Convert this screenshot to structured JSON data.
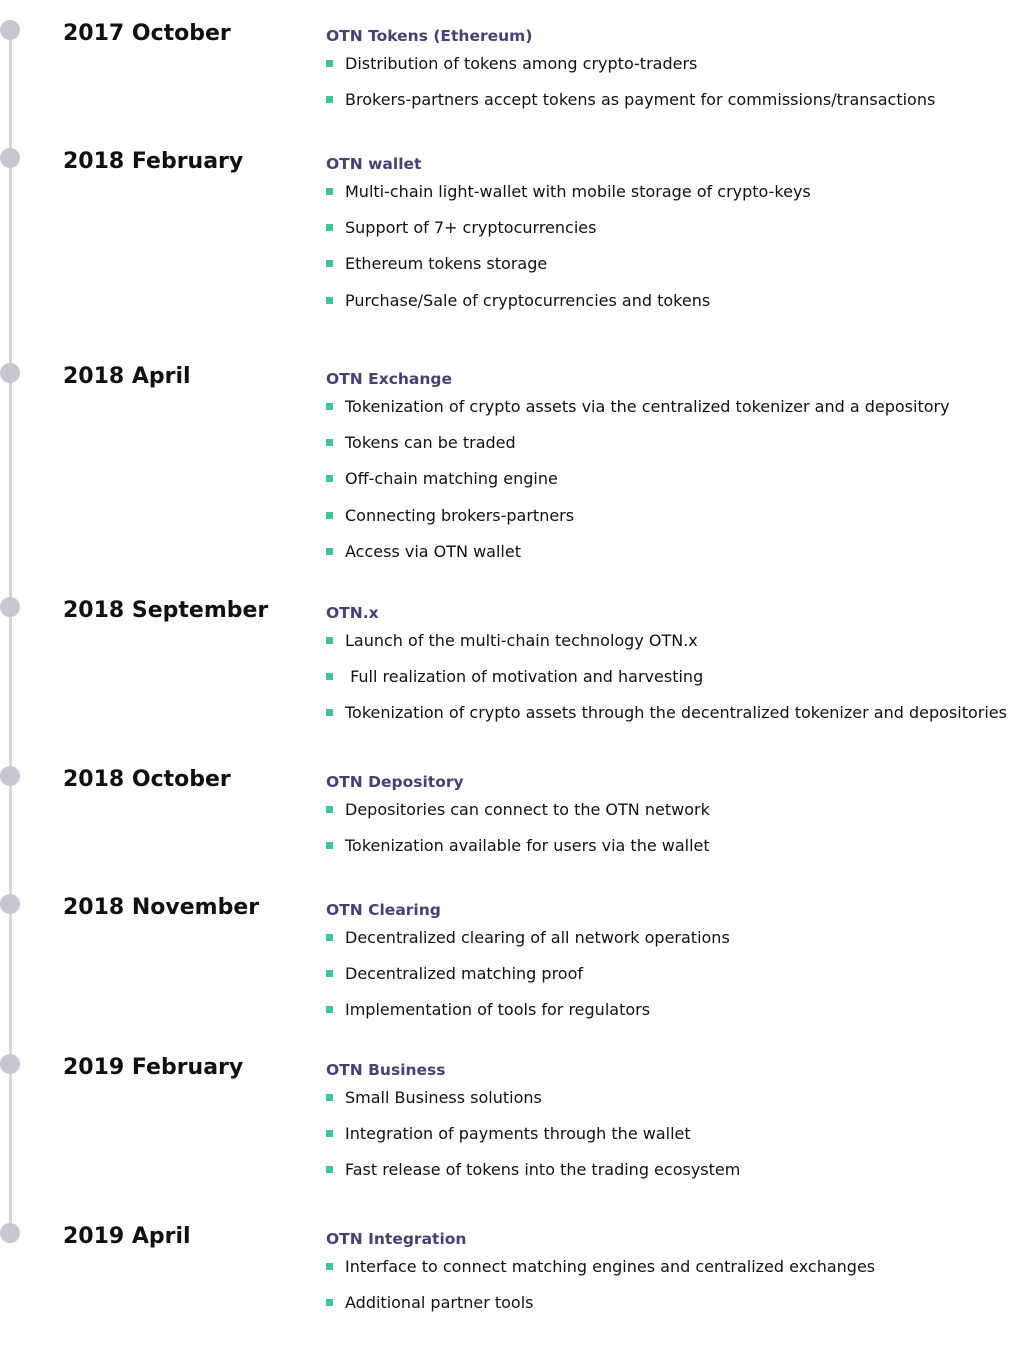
{
  "milestones": [
    {
      "date": "2017 October",
      "title": "OTN Tokens (Ethereum)",
      "items": [
        "Distribution of tokens among crypto-traders",
        "Brokers-partners accept tokens as payment for commissions/transactions"
      ]
    },
    {
      "date": "2018 February",
      "title": "OTN wallet",
      "items": [
        "Multi-chain light-wallet with mobile storage of crypto-keys",
        "Support of 7+ cryptocurrencies",
        "Ethereum tokens storage",
        "Purchase/Sale of cryptocurrencies and tokens"
      ]
    },
    {
      "date": "2018 April",
      "title": "OTN Exchange",
      "items": [
        "Tokenization of crypto assets via the centralized tokenizer and a depository",
        "Tokens can be traded",
        "Off-chain matching engine",
        "Connecting brokers-partners",
        "Access via OTN wallet"
      ]
    },
    {
      "date": "2018 September",
      "title": "OTN.x",
      "items": [
        "Launch of the multi-chain technology OTN.x",
        " Full realization of motivation and harvesting",
        "Tokenization of crypto assets through the decentralized tokenizer and depositories"
      ]
    },
    {
      "date": "2018 October",
      "title": "OTN Depository",
      "items": [
        "Depositories can connect to the OTN network",
        "Tokenization available for users via the wallet"
      ]
    },
    {
      "date": "2018 November",
      "title": "OTN Clearing",
      "items": [
        "Decentralized clearing of all network operations",
        "Decentralized matching proof",
        "Implementation of tools for regulators"
      ]
    },
    {
      "date": "2019 February",
      "title": "OTN Business",
      "items": [
        "Small Business solutions",
        "Integration of payments through the wallet",
        "Fast release of tokens into the trading ecosystem"
      ]
    },
    {
      "date": "2019 April",
      "title": "OTN Integration",
      "items": [
        "Interface to connect matching engines and centralized exchanges",
        "Additional partner tools"
      ]
    }
  ],
  "colors": {
    "title": "#4a3f75",
    "bullet": "#3fc4a0",
    "timeline": "#d6d3df",
    "dot": "#c9c6d4"
  }
}
